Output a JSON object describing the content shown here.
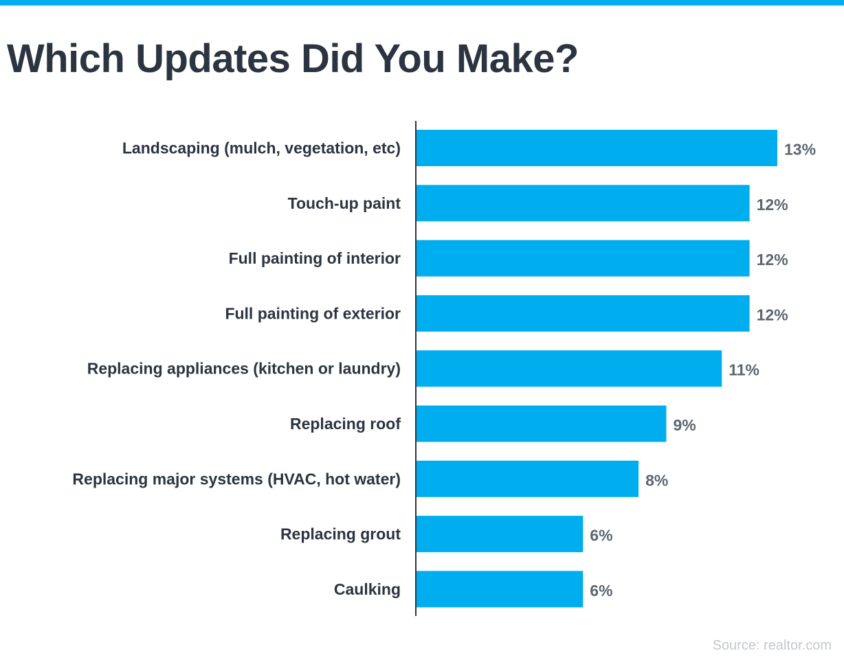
{
  "colors": {
    "accent": "#00AEEF",
    "bar": "#00AEEF",
    "title": "#2b3440",
    "value_label": "#5b6670",
    "source": "#c4c8cc",
    "axis": "#2b3440"
  },
  "chart_data": {
    "type": "bar",
    "orientation": "horizontal",
    "title": "Which Updates Did You Make?",
    "categories": [
      "Landscaping (mulch, vegetation, etc)",
      "Touch-up paint",
      "Full painting of interior",
      "Full painting of exterior",
      "Replacing appliances (kitchen or laundry)",
      "Replacing roof",
      "Replacing major systems (HVAC, hot water)",
      "Replacing grout",
      "Caulking"
    ],
    "values": [
      13,
      12,
      12,
      12,
      11,
      9,
      8,
      6,
      6
    ],
    "value_labels": [
      "13%",
      "12%",
      "12%",
      "12%",
      "11%",
      "9%",
      "8%",
      "6%",
      "6%"
    ],
    "xlim": [
      0,
      15
    ],
    "grid": false,
    "legend": "none",
    "source": "Source: realtor.com"
  }
}
